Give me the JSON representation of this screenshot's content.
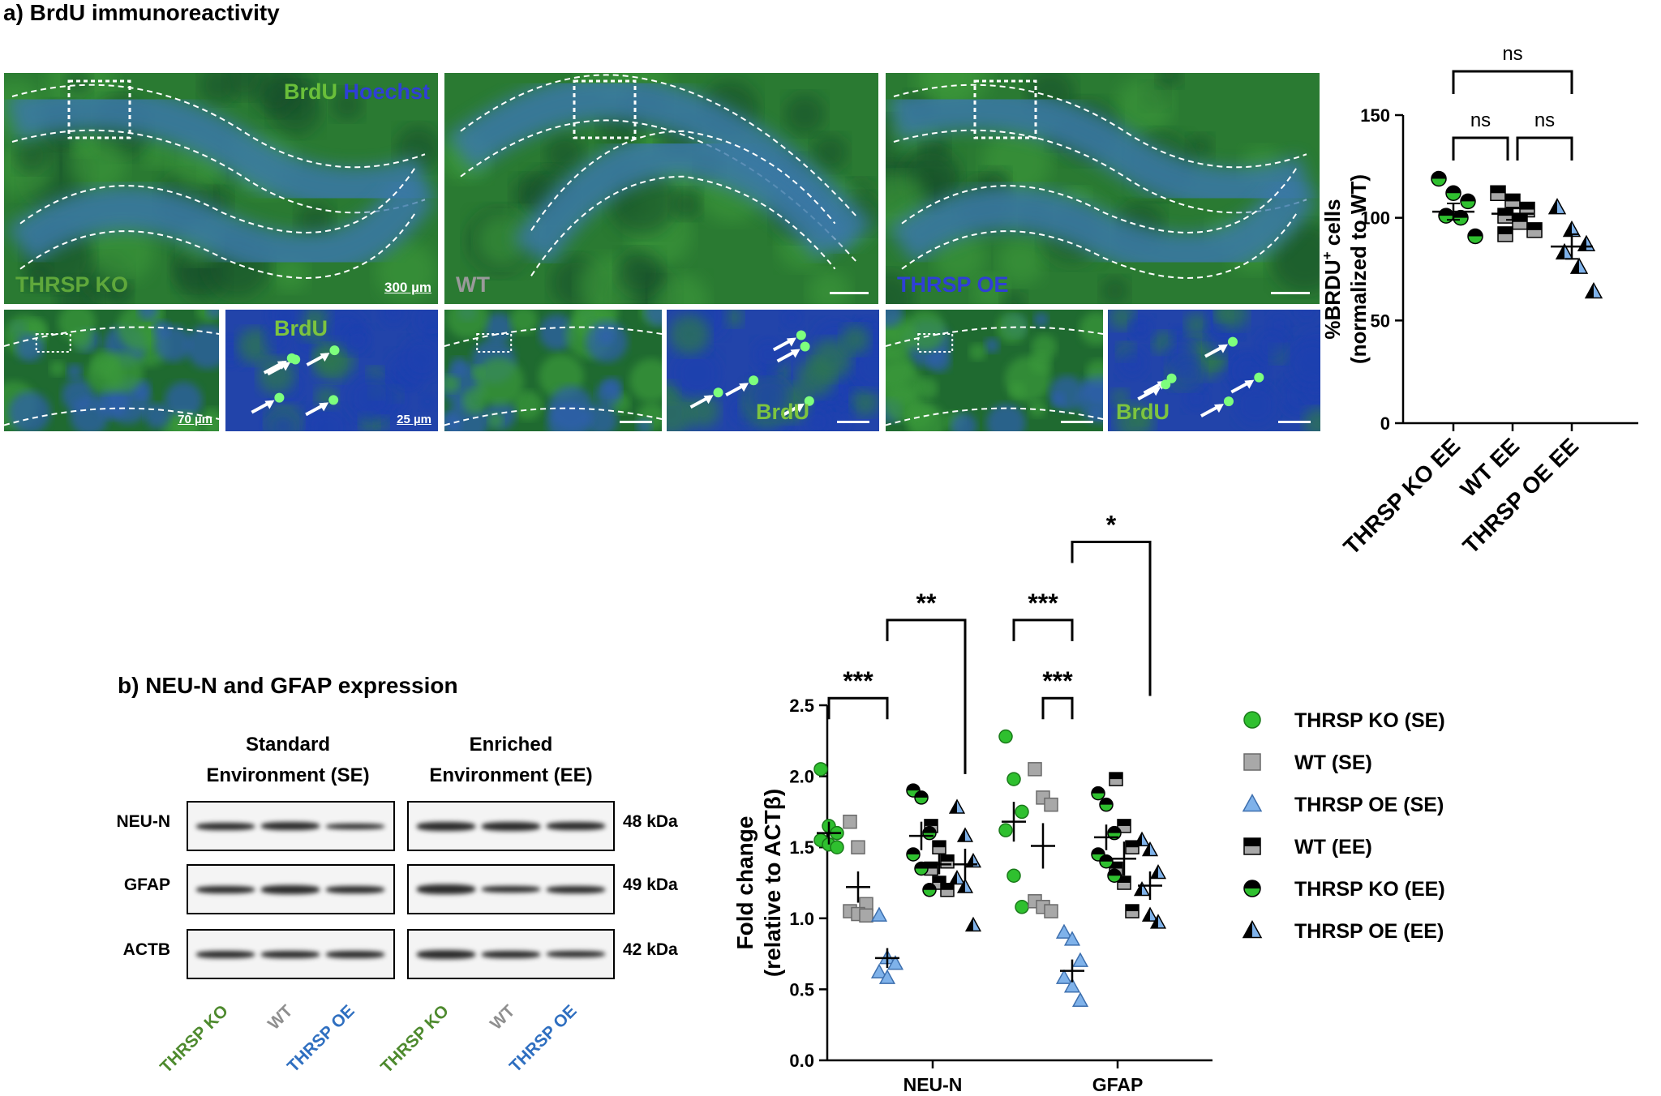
{
  "panel_a": {
    "title": "a) BrdU immunoreactivity",
    "main_images": [
      {
        "label": "THRSP KO",
        "label_color": "#5fa83b",
        "scale": "300 µm",
        "stain_brdu": "BrdU",
        "stain_hoechst": "Hoechst"
      },
      {
        "label": "WT",
        "label_color": "#9a9a9a",
        "scale": ""
      },
      {
        "label": "THRSP OE",
        "label_color": "#2f3fd6",
        "scale": ""
      }
    ],
    "sub_images": [
      {
        "scale": "70 µm",
        "brdu": ""
      },
      {
        "scale": "25 µm",
        "brdu": "BrdU"
      },
      {
        "scale": "",
        "brdu": ""
      },
      {
        "scale": "",
        "brdu": "BrdU"
      },
      {
        "scale": "",
        "brdu": ""
      },
      {
        "scale": "",
        "brdu": "BrdU"
      }
    ]
  },
  "panel_b": {
    "title": "b) NEU-N and GFAP expression",
    "env_se": "Standard\nEnvironment (SE)",
    "env_ee": "Enriched\nEnvironment (EE)",
    "rows": [
      {
        "label": "NEU-N",
        "kda": "48 kDa"
      },
      {
        "label": "GFAP",
        "kda": "49 kDa"
      },
      {
        "label": "ACTB",
        "kda": "42 kDa"
      }
    ],
    "lanes": [
      {
        "label": "THRSP KO",
        "color": "#4e8a2e"
      },
      {
        "label": "WT",
        "color": "#8f8f8f"
      },
      {
        "label": "THRSP OE",
        "color": "#2f6fc0"
      },
      {
        "label": "THRSP KO",
        "color": "#4e8a2e"
      },
      {
        "label": "WT",
        "color": "#8f8f8f"
      },
      {
        "label": "THRSP OE",
        "color": "#2f6fc0"
      }
    ]
  },
  "colors": {
    "green": "#2fc02f",
    "gray": "#a8a8a8",
    "blue": "#7fb2ea",
    "black": "#000000"
  },
  "chart_data": [
    {
      "type": "scatter",
      "ylabel_line1": "%BRDU",
      "ylabel_sup": "+",
      "ylabel_line1_end": " cells",
      "ylabel_line2": "(normalized to  WT)",
      "ylim": [
        0,
        150
      ],
      "yticks": [
        0,
        50,
        100,
        150
      ],
      "categories": [
        "THRSP KO EE",
        "WT EE",
        "THRSP OE EE"
      ],
      "series": [
        {
          "group": "THRSP KO EE",
          "marker": "circle-half",
          "values": [
            119,
            112,
            108,
            101,
            100,
            91
          ],
          "mean": 103,
          "sem": 4
        },
        {
          "group": "WT EE",
          "marker": "square-half",
          "values": [
            112,
            108,
            104,
            101,
            98,
            94,
            92
          ],
          "mean": 102,
          "sem": 3
        },
        {
          "group": "THRSP OE EE",
          "marker": "triangle-half",
          "values": [
            105,
            94,
            87,
            83,
            76,
            64
          ],
          "mean": 86,
          "sem": 6
        }
      ],
      "significance": [
        {
          "from": 0,
          "to": 2,
          "label": "ns"
        },
        {
          "from": 0,
          "to": 1,
          "label": "ns"
        },
        {
          "from": 1,
          "to": 2,
          "label": "ns"
        }
      ]
    },
    {
      "type": "scatter",
      "ylabel_line1": "Fold change",
      "ylabel_line2": "(relative to ACTβ)",
      "ylim": [
        0,
        2.5
      ],
      "yticks": [
        "0.0",
        "0.5",
        "1.0",
        "1.5",
        "2.0",
        "2.5"
      ],
      "categories": [
        "NEU-N",
        "GFAP"
      ],
      "groups": [
        {
          "name": "THRSP KO (SE)",
          "marker": "circle-green"
        },
        {
          "name": "WT (SE)",
          "marker": "square-gray"
        },
        {
          "name": "THRSP OE (SE)",
          "marker": "triangle-blue"
        },
        {
          "name": "WT (EE)",
          "marker": "square-half"
        },
        {
          "name": "THRSP KO (EE)",
          "marker": "circle-half"
        },
        {
          "name": "THRSP OE (EE)",
          "marker": "triangle-half"
        }
      ],
      "series": {
        "NEU-N": [
          {
            "values": [
              2.05,
              1.65,
              1.6,
              1.55,
              1.52,
              1.5
            ],
            "mean": 1.6,
            "sem": 0.08
          },
          {
            "values": [
              1.68,
              1.5,
              1.1,
              1.05,
              1.03,
              1.02
            ],
            "mean": 1.22,
            "sem": 0.11
          },
          {
            "values": [
              1.02,
              0.72,
              0.68,
              0.62,
              0.58
            ],
            "mean": 0.72,
            "sem": 0.07
          },
          {
            "values": [
              1.65,
              1.5,
              1.4,
              1.35,
              1.25,
              1.2
            ],
            "mean": 1.38,
            "sem": 0.07
          },
          {
            "values": [
              1.9,
              1.85,
              1.6,
              1.45,
              1.35,
              1.2
            ],
            "mean": 1.58,
            "sem": 0.1
          },
          {
            "values": [
              1.78,
              1.58,
              1.4,
              1.28,
              1.22,
              0.95
            ],
            "mean": 1.38,
            "sem": 0.11
          }
        ],
        "GFAP": [
          {
            "values": [
              2.28,
              1.98,
              1.75,
              1.62,
              1.3,
              1.08
            ],
            "mean": 1.68,
            "sem": 0.14
          },
          {
            "values": [
              2.05,
              1.85,
              1.8,
              1.12,
              1.08,
              1.05
            ],
            "mean": 1.51,
            "sem": 0.16
          },
          {
            "values": [
              0.9,
              0.85,
              0.7,
              0.58,
              0.52,
              0.42
            ],
            "mean": 0.63,
            "sem": 0.08
          },
          {
            "values": [
              1.98,
              1.65,
              1.5,
              1.35,
              1.25,
              1.05
            ],
            "mean": 1.42,
            "sem": 0.12
          },
          {
            "values": [
              1.88,
              1.8,
              1.6,
              1.45,
              1.4,
              1.3
            ],
            "mean": 1.57,
            "sem": 0.09
          },
          {
            "values": [
              1.55,
              1.48,
              1.32,
              1.2,
              1.02,
              0.97
            ],
            "mean": 1.23,
            "sem": 0.1
          }
        ]
      },
      "significance": [
        {
          "cat": "NEU-N",
          "from": 0,
          "to": 2,
          "label": "***",
          "level": 2.55
        },
        {
          "cat": "NEU-N",
          "from": 2,
          "to": 5,
          "label": "**",
          "level": 3.1
        },
        {
          "cat": "GFAP",
          "from": 0,
          "to": 2,
          "label": "***",
          "level": 3.1
        },
        {
          "cat": "GFAP",
          "from": 1,
          "to": 2,
          "label": "***",
          "level": 2.55
        },
        {
          "cat": "GFAP",
          "from": 2,
          "to": 5,
          "label": "*",
          "level": 3.65
        }
      ]
    }
  ]
}
